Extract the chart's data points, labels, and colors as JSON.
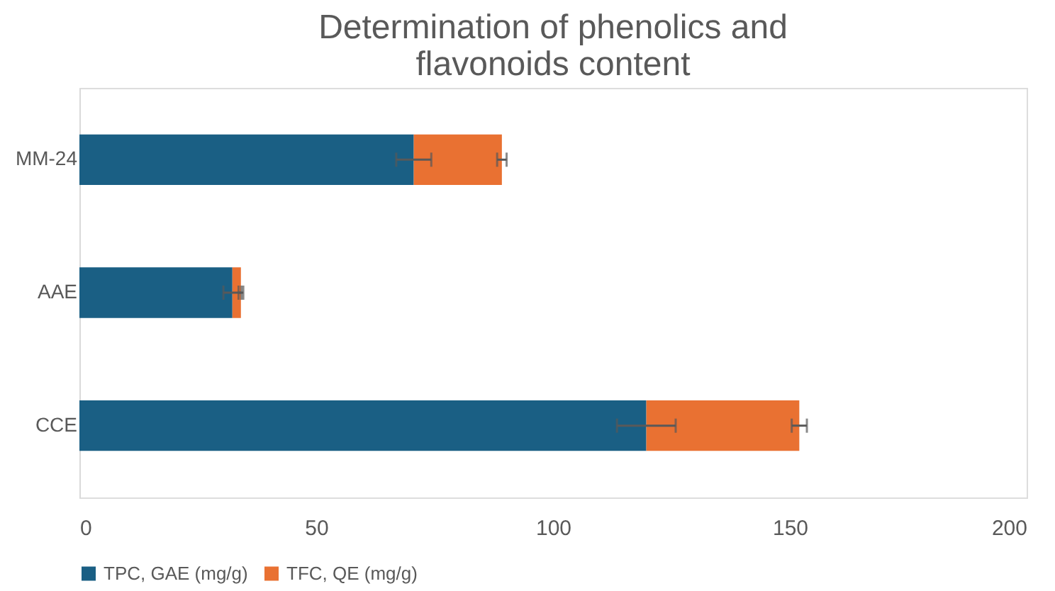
{
  "chart_data": {
    "type": "bar",
    "title": "Determination of phenolics and flavonoids content",
    "orientation": "horizontal",
    "stacked": true,
    "categories": [
      "MM-24",
      "AAE",
      "CCE"
    ],
    "series": [
      {
        "name": "TPC, GAE (mg/g)",
        "color": "#1a5f84",
        "values": [
          70.6,
          32.3,
          119.7
        ],
        "errors": [
          3.7,
          1.9,
          6.2
        ]
      },
      {
        "name": "TFC, QE (mg/g)",
        "color": "#e97132",
        "values": [
          18.6,
          1.8,
          32.3
        ],
        "errors": [
          1,
          0.5,
          1.6
        ]
      }
    ],
    "xlim": [
      0,
      200
    ],
    "xticks": [
      0,
      50,
      100,
      150,
      200
    ],
    "legend": "bottom"
  }
}
